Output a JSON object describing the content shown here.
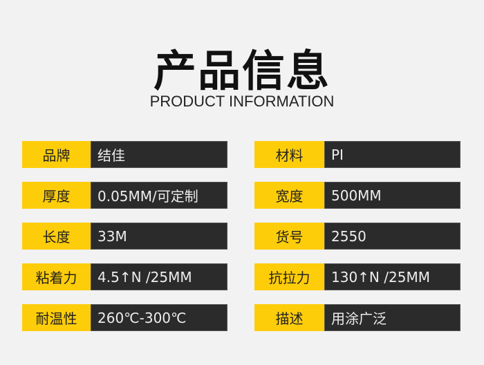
{
  "header": {
    "title": "产品信息",
    "subtitle": "PRODUCT INFORMATION"
  },
  "colors": {
    "label_bg": "#fecd0a",
    "value_bg": "#2b2b2b",
    "page_bg": "#f2f2f2"
  },
  "specs": [
    {
      "label": "品牌",
      "value": "结佳"
    },
    {
      "label": "材料",
      "value": "PI"
    },
    {
      "label": "厚度",
      "value": "0.05MM/可定制"
    },
    {
      "label": "宽度",
      "value": "500MM"
    },
    {
      "label": "长度",
      "value": "33M"
    },
    {
      "label": "货号",
      "value": "2550"
    },
    {
      "label": "粘着力",
      "value": "4.5↑N /25MM"
    },
    {
      "label": "抗拉力",
      "value": "130↑N /25MM"
    },
    {
      "label": "耐温性",
      "value": "260℃-300℃"
    },
    {
      "label": "描述",
      "value": "用涂广泛"
    }
  ]
}
